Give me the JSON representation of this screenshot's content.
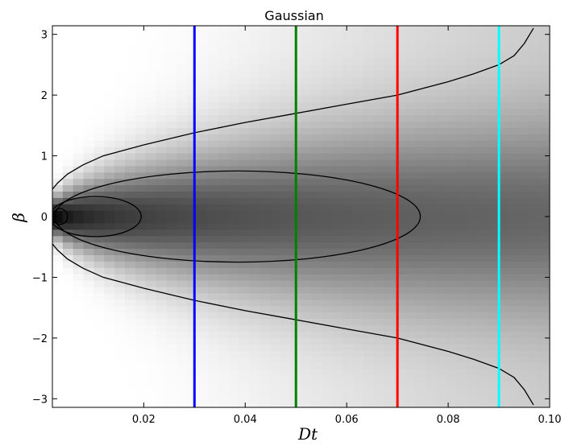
{
  "chart_data": {
    "type": "heatmap",
    "title": "Gaussian",
    "xlabel": "Dt",
    "ylabel": "β",
    "xlim": [
      0.002,
      0.1
    ],
    "ylim": [
      -3.14159,
      3.14159
    ],
    "grid": false,
    "x_ticks": [
      {
        "value": 0.02,
        "label": "0.02"
      },
      {
        "value": 0.04,
        "label": "0.04"
      },
      {
        "value": 0.06,
        "label": "0.06"
      },
      {
        "value": 0.08,
        "label": "0.08"
      },
      {
        "value": 0.1,
        "label": "0.10"
      }
    ],
    "y_ticks": [
      {
        "value": -3,
        "label": "−3"
      },
      {
        "value": -2,
        "label": "−2"
      },
      {
        "value": -1,
        "label": "−1"
      },
      {
        "value": 0,
        "label": "0"
      },
      {
        "value": 1,
        "label": "1"
      },
      {
        "value": 2,
        "label": "2"
      },
      {
        "value": 3,
        "label": "3"
      }
    ],
    "heatmap": {
      "x_bins": 48,
      "y_bins": 60,
      "colormap": "gray_r"
    },
    "contours": [
      {
        "level": "outer",
        "x": [
          0.002,
          0.003,
          0.005,
          0.008,
          0.012,
          0.02,
          0.03,
          0.04,
          0.05,
          0.06,
          0.07,
          0.08,
          0.085,
          0.09,
          0.093,
          0.095,
          0.0968
        ],
        "beta_upper": [
          0.45,
          0.55,
          0.7,
          0.85,
          1.0,
          1.18,
          1.38,
          1.55,
          1.7,
          1.85,
          2.0,
          2.22,
          2.35,
          2.5,
          2.65,
          2.85,
          3.1
        ]
      },
      {
        "level": "middle",
        "center": 0.0385,
        "x_extent": [
          0.002,
          0.0745
        ],
        "beta_max": 0.75
      },
      {
        "level": "inner",
        "center": 0.0105,
        "x_extent": [
          0.002,
          0.0195
        ],
        "beta_max": 0.33
      },
      {
        "level": "innermost",
        "center": 0.0035,
        "x_extent": [
          0.002,
          0.005
        ],
        "beta_max": 0.13
      }
    ],
    "vertical_lines": [
      {
        "x": 0.03,
        "color": "#0000ff"
      },
      {
        "x": 0.05,
        "color": "#008000"
      },
      {
        "x": 0.07,
        "color": "#ff0000"
      },
      {
        "x": 0.09,
        "color": "#00ffff"
      }
    ]
  }
}
